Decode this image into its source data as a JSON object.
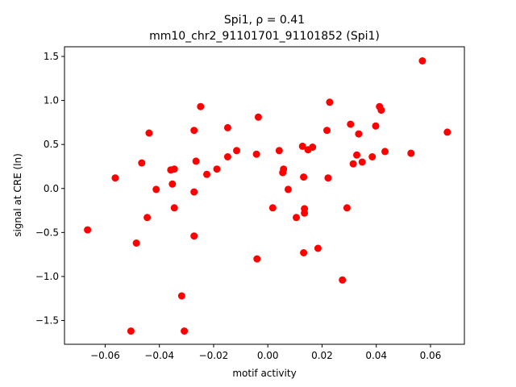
{
  "chart_data": {
    "type": "scatter",
    "title_line1": "Spi1, ρ = 0.41",
    "title_line2": "mm10_chr2_91101701_91101852 (Spi1)",
    "xlabel": "motif activity",
    "ylabel": "signal at CRE (ln)",
    "xlim": [
      -0.075,
      0.0725
    ],
    "ylim": [
      -1.77,
      1.61
    ],
    "x_ticks": [
      -0.06,
      -0.04,
      -0.02,
      0.0,
      0.02,
      0.04,
      0.06
    ],
    "x_tick_labels": [
      "−0.06",
      "−0.04",
      "−0.02",
      "0.00",
      "0.02",
      "0.04",
      "0.06"
    ],
    "y_ticks": [
      -1.5,
      -1.0,
      -0.5,
      0.0,
      0.5,
      1.0,
      1.5
    ],
    "y_tick_labels": [
      "−1.5",
      "−1.0",
      "−0.5",
      "0.0",
      "0.5",
      "1.0",
      "1.5"
    ],
    "grid": false,
    "marker_color": "#ff0000",
    "points": [
      {
        "x": -0.0665,
        "y": -0.47
      },
      {
        "x": -0.0563,
        "y": 0.12
      },
      {
        "x": -0.0505,
        "y": -1.62
      },
      {
        "x": -0.0485,
        "y": -0.62
      },
      {
        "x": -0.0465,
        "y": 0.29
      },
      {
        "x": -0.0445,
        "y": -0.33
      },
      {
        "x": -0.0438,
        "y": 0.63
      },
      {
        "x": -0.0412,
        "y": -0.01
      },
      {
        "x": -0.0358,
        "y": 0.21
      },
      {
        "x": -0.0352,
        "y": 0.05
      },
      {
        "x": -0.0345,
        "y": 0.22
      },
      {
        "x": -0.0345,
        "y": -0.22
      },
      {
        "x": -0.0318,
        "y": -1.22
      },
      {
        "x": -0.0308,
        "y": -1.62
      },
      {
        "x": -0.0272,
        "y": 0.66
      },
      {
        "x": -0.0272,
        "y": -0.04
      },
      {
        "x": -0.0272,
        "y": -0.54
      },
      {
        "x": -0.0265,
        "y": 0.31
      },
      {
        "x": -0.0248,
        "y": 0.93
      },
      {
        "x": -0.0225,
        "y": 0.16
      },
      {
        "x": -0.0188,
        "y": 0.22
      },
      {
        "x": -0.0148,
        "y": 0.69
      },
      {
        "x": -0.0148,
        "y": 0.36
      },
      {
        "x": -0.0115,
        "y": 0.43
      },
      {
        "x": -0.0042,
        "y": 0.39
      },
      {
        "x": -0.004,
        "y": -0.8
      },
      {
        "x": -0.0035,
        "y": 0.81
      },
      {
        "x": 0.0018,
        "y": -0.22
      },
      {
        "x": 0.0042,
        "y": 0.43
      },
      {
        "x": 0.0055,
        "y": 0.18
      },
      {
        "x": 0.0058,
        "y": 0.22
      },
      {
        "x": 0.0075,
        "y": -0.01
      },
      {
        "x": 0.0105,
        "y": -0.33
      },
      {
        "x": 0.0128,
        "y": 0.48
      },
      {
        "x": 0.0132,
        "y": 0.13
      },
      {
        "x": 0.0132,
        "y": -0.73
      },
      {
        "x": 0.0135,
        "y": -0.28
      },
      {
        "x": 0.0135,
        "y": -0.23
      },
      {
        "x": 0.0148,
        "y": 0.44
      },
      {
        "x": 0.0165,
        "y": 0.47
      },
      {
        "x": 0.0185,
        "y": -0.68
      },
      {
        "x": 0.0218,
        "y": 0.66
      },
      {
        "x": 0.0222,
        "y": 0.12
      },
      {
        "x": 0.0228,
        "y": 0.98
      },
      {
        "x": 0.0275,
        "y": -1.04
      },
      {
        "x": 0.0292,
        "y": -0.22
      },
      {
        "x": 0.0305,
        "y": 0.73
      },
      {
        "x": 0.0315,
        "y": 0.28
      },
      {
        "x": 0.0328,
        "y": 0.38
      },
      {
        "x": 0.0335,
        "y": 0.62
      },
      {
        "x": 0.0348,
        "y": 0.3
      },
      {
        "x": 0.0385,
        "y": 0.36
      },
      {
        "x": 0.0398,
        "y": 0.71
      },
      {
        "x": 0.0412,
        "y": 0.93
      },
      {
        "x": 0.0418,
        "y": 0.89
      },
      {
        "x": 0.0432,
        "y": 0.42
      },
      {
        "x": 0.0528,
        "y": 0.4
      },
      {
        "x": 0.057,
        "y": 1.45
      },
      {
        "x": 0.0662,
        "y": 0.64
      }
    ]
  }
}
